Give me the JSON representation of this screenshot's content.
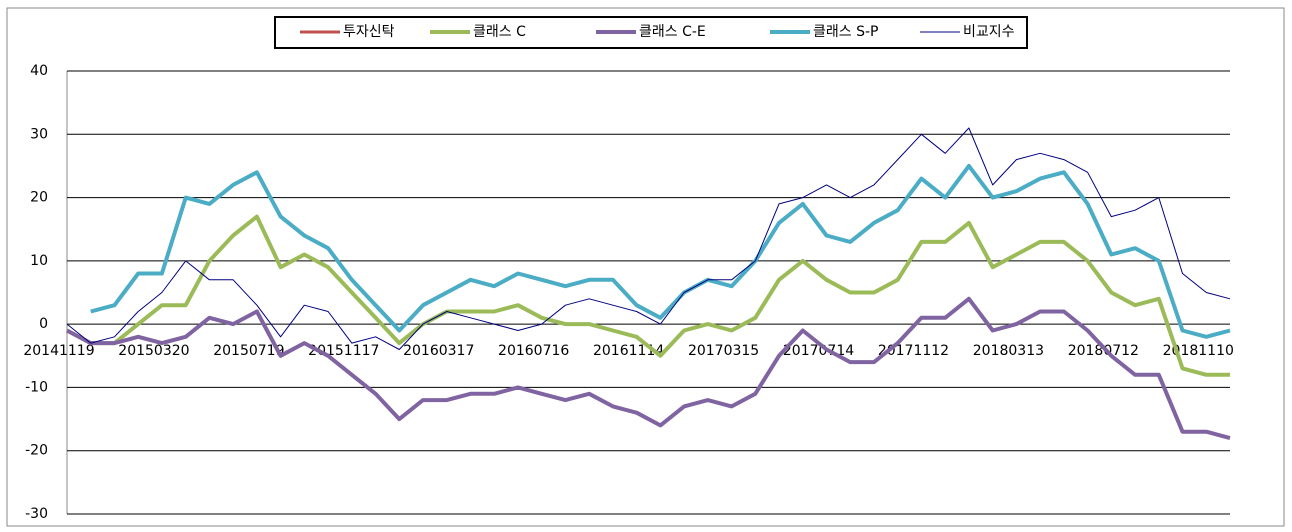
{
  "chart_data": {
    "type": "line",
    "categories": [
      "20141119",
      null,
      null,
      null,
      "20150320",
      null,
      null,
      null,
      "20150719",
      null,
      null,
      null,
      "20151117",
      null,
      null,
      null,
      "20160317",
      null,
      null,
      null,
      "20160716",
      null,
      null,
      null,
      "20161114",
      null,
      null,
      null,
      "20170315",
      null,
      null,
      null,
      "20170714",
      null,
      null,
      null,
      "20171112",
      null,
      null,
      null,
      "20180313",
      null,
      null,
      null,
      "20180712",
      null,
      null,
      null,
      "20181110",
      null
    ],
    "ylim": [
      -30,
      40
    ],
    "yticks": [
      -30,
      -20,
      -10,
      0,
      10,
      20,
      30,
      40
    ],
    "grid": true,
    "legend": "top",
    "series": [
      {
        "name": "투자신탁",
        "color": "#c0504d",
        "width": 3,
        "values": [
          -1,
          -3,
          -3,
          0,
          3,
          3,
          10,
          14,
          17,
          9,
          11,
          9,
          5,
          1,
          -3,
          0,
          2,
          2,
          2,
          3,
          1,
          0,
          0,
          -1,
          -2,
          -5,
          -1,
          0,
          -1,
          1,
          7,
          10,
          7,
          5,
          5,
          7,
          13,
          13,
          16,
          9,
          11,
          13,
          13,
          10,
          5,
          3,
          4,
          -7,
          -8,
          -8
        ]
      },
      {
        "name": "클래스 C",
        "color": "#9bbb59",
        "width": 4,
        "values": [
          -1,
          -3,
          -3,
          0,
          3,
          3,
          10,
          14,
          17,
          9,
          11,
          9,
          5,
          1,
          -3,
          0,
          2,
          2,
          2,
          3,
          1,
          0,
          0,
          -1,
          -2,
          -5,
          -1,
          0,
          -1,
          1,
          7,
          10,
          7,
          5,
          5,
          7,
          13,
          13,
          16,
          9,
          11,
          13,
          13,
          10,
          5,
          3,
          4,
          -7,
          -8,
          -8
        ]
      },
      {
        "name": "클래스 C-E",
        "color": "#8064a2",
        "width": 4,
        "values": [
          -1,
          -3,
          -3,
          -2,
          -3,
          -2,
          1,
          0,
          2,
          -5,
          -3,
          -5,
          -8,
          -11,
          -15,
          -12,
          -12,
          -11,
          -11,
          -10,
          -11,
          -12,
          -11,
          -13,
          -14,
          -16,
          -13,
          -12,
          -13,
          -11,
          -5,
          -1,
          -4,
          -6,
          -6,
          -3,
          1,
          1,
          4,
          -1,
          0,
          2,
          2,
          -1,
          -5,
          -8,
          -8,
          -17,
          -17,
          -18
        ]
      },
      {
        "name": "클래스 S-P",
        "color": "#4bacc6",
        "width": 4,
        "values": [
          null,
          2,
          3,
          8,
          8,
          20,
          19,
          22,
          24,
          17,
          14,
          12,
          7,
          3,
          -1,
          3,
          5,
          7,
          6,
          8,
          7,
          6,
          7,
          7,
          3,
          1,
          5,
          7,
          6,
          10,
          16,
          19,
          14,
          13,
          16,
          18,
          23,
          20,
          25,
          20,
          21,
          23,
          24,
          19,
          11,
          12,
          10,
          -1,
          -2,
          -1
        ]
      },
      {
        "name": "비교지수",
        "color": "#000080",
        "width": 1,
        "values": [
          0,
          -3,
          -2,
          2,
          5,
          10,
          7,
          7,
          3,
          -2,
          3,
          2,
          -3,
          -2,
          -4,
          0,
          2,
          1,
          0,
          -1,
          0,
          3,
          4,
          3,
          2,
          0,
          5,
          7,
          7,
          10,
          19,
          20,
          22,
          20,
          22,
          26,
          30,
          27,
          31,
          22,
          26,
          27,
          26,
          24,
          17,
          18,
          20,
          8,
          5,
          4
        ]
      }
    ]
  }
}
